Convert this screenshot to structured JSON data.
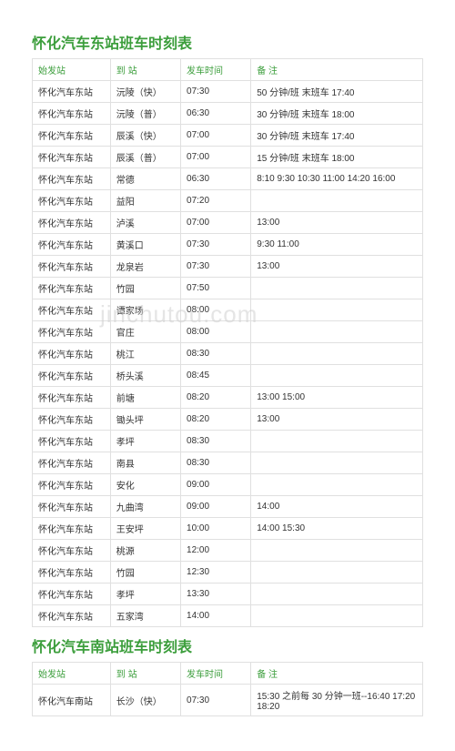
{
  "watermark": "jinchutou.com",
  "tables": [
    {
      "title": "怀化汽车东站班车时刻表",
      "headers": [
        "始发站",
        "到 站",
        "发车时间",
        "备 注"
      ],
      "rows": [
        [
          "怀化汽车东站",
          "沅陵（快）",
          "07:30",
          "50 分钟/班 末班车 17:40"
        ],
        [
          "怀化汽车东站",
          "沅陵（普）",
          "06:30",
          "30 分钟/班 末班车 18:00"
        ],
        [
          "怀化汽车东站",
          "辰溪（快）",
          "07:00",
          "30 分钟/班 末班车 17:40"
        ],
        [
          "怀化汽车东站",
          "辰溪（普）",
          "07:00",
          "15 分钟/班 末班车 18:00"
        ],
        [
          "怀化汽车东站",
          "常德",
          "06:30",
          "8:10 9:30 10:30  11:00 14:20 16:00"
        ],
        [
          "怀化汽车东站",
          "益阳",
          "07:20",
          ""
        ],
        [
          "怀化汽车东站",
          "泸溪",
          "07:00",
          "13:00"
        ],
        [
          "怀化汽车东站",
          "黄溪口",
          "07:30",
          "9:30 11:00"
        ],
        [
          "怀化汽车东站",
          "龙泉岩",
          "07:30",
          "13:00"
        ],
        [
          "怀化汽车东站",
          "竹园",
          "07:50",
          ""
        ],
        [
          "怀化汽车东站",
          "谭家场",
          "08:00",
          ""
        ],
        [
          "怀化汽车东站",
          "官庄",
          "08:00",
          ""
        ],
        [
          "怀化汽车东站",
          "桃江",
          "08:30",
          ""
        ],
        [
          "怀化汽车东站",
          "桥头溪",
          "08:45",
          ""
        ],
        [
          "怀化汽车东站",
          "前塘",
          "08:20",
          "13:00 15:00"
        ],
        [
          "怀化汽车东站",
          "锄头坪",
          "08:20",
          "13:00"
        ],
        [
          "怀化汽车东站",
          "孝坪",
          "08:30",
          ""
        ],
        [
          "怀化汽车东站",
          "南县",
          "08:30",
          ""
        ],
        [
          "怀化汽车东站",
          "安化",
          "09:00",
          ""
        ],
        [
          "怀化汽车东站",
          "九曲湾",
          "09:00",
          "14:00"
        ],
        [
          "怀化汽车东站",
          "王安坪",
          "10:00",
          "14:00 15:30"
        ],
        [
          "怀化汽车东站",
          "桃源",
          "12:00",
          ""
        ],
        [
          "怀化汽车东站",
          "竹园",
          "12:30",
          ""
        ],
        [
          "怀化汽车东站",
          "孝坪",
          "13:30",
          ""
        ],
        [
          "怀化汽车东站",
          "五家湾",
          "14:00",
          ""
        ]
      ]
    },
    {
      "title": "怀化汽车南站班车时刻表",
      "headers": [
        "始发站",
        "到 站",
        "发车时间",
        "备 注"
      ],
      "rows": [
        [
          "怀化汽车南站",
          "长沙（快）",
          "07:30",
          "15:30 之前每 30 分钟一班--16:40 17:20 18:20"
        ]
      ]
    }
  ],
  "colors": {
    "title": "#3c9e3c",
    "header": "#3c9e3c",
    "text": "#333333",
    "border": "#e0e0e0",
    "background": "#ffffff",
    "watermark": "#d0d0d0"
  }
}
